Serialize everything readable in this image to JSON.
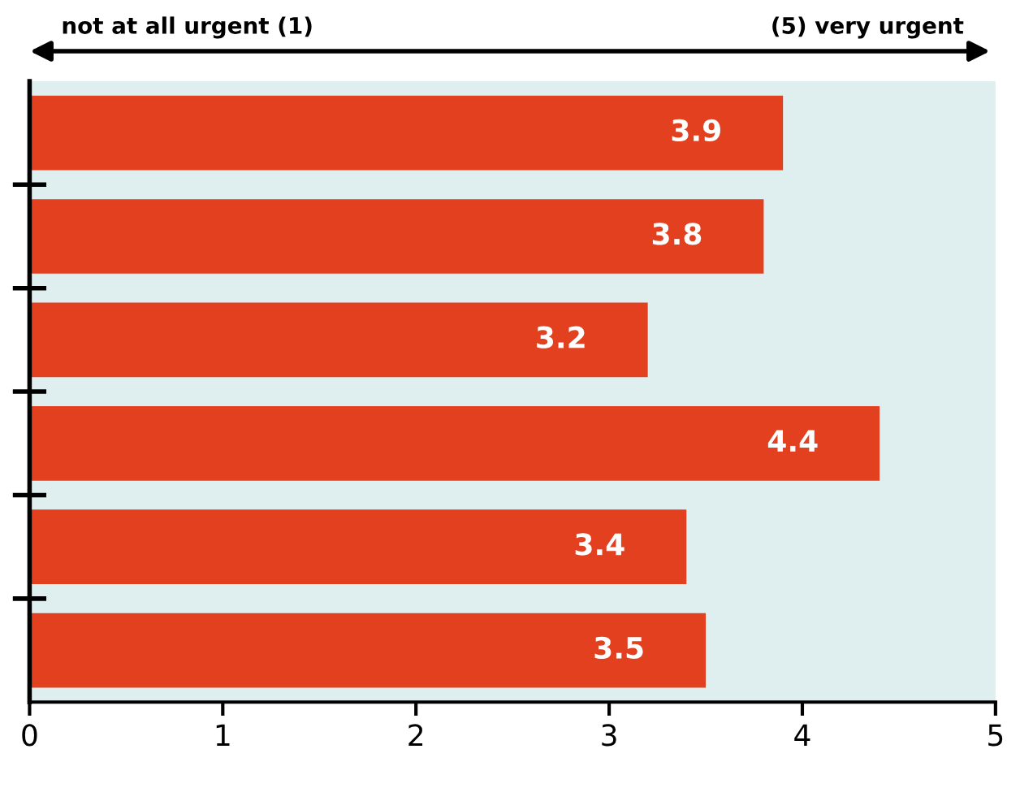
{
  "chart_data": {
    "type": "bar",
    "orientation": "horizontal",
    "categories": [
      null,
      null,
      null,
      null,
      null,
      null
    ],
    "values": [
      3.9,
      3.8,
      3.2,
      4.4,
      3.4,
      3.5
    ],
    "color": "#e2401f",
    "data_labels": true,
    "xlim": [
      0,
      5
    ],
    "xticks": [
      0,
      1,
      2,
      3,
      4,
      5
    ],
    "grid": false,
    "legend": false,
    "annotations": [
      "not at all urgent (1)",
      "(5) very urgent"
    ]
  }
}
